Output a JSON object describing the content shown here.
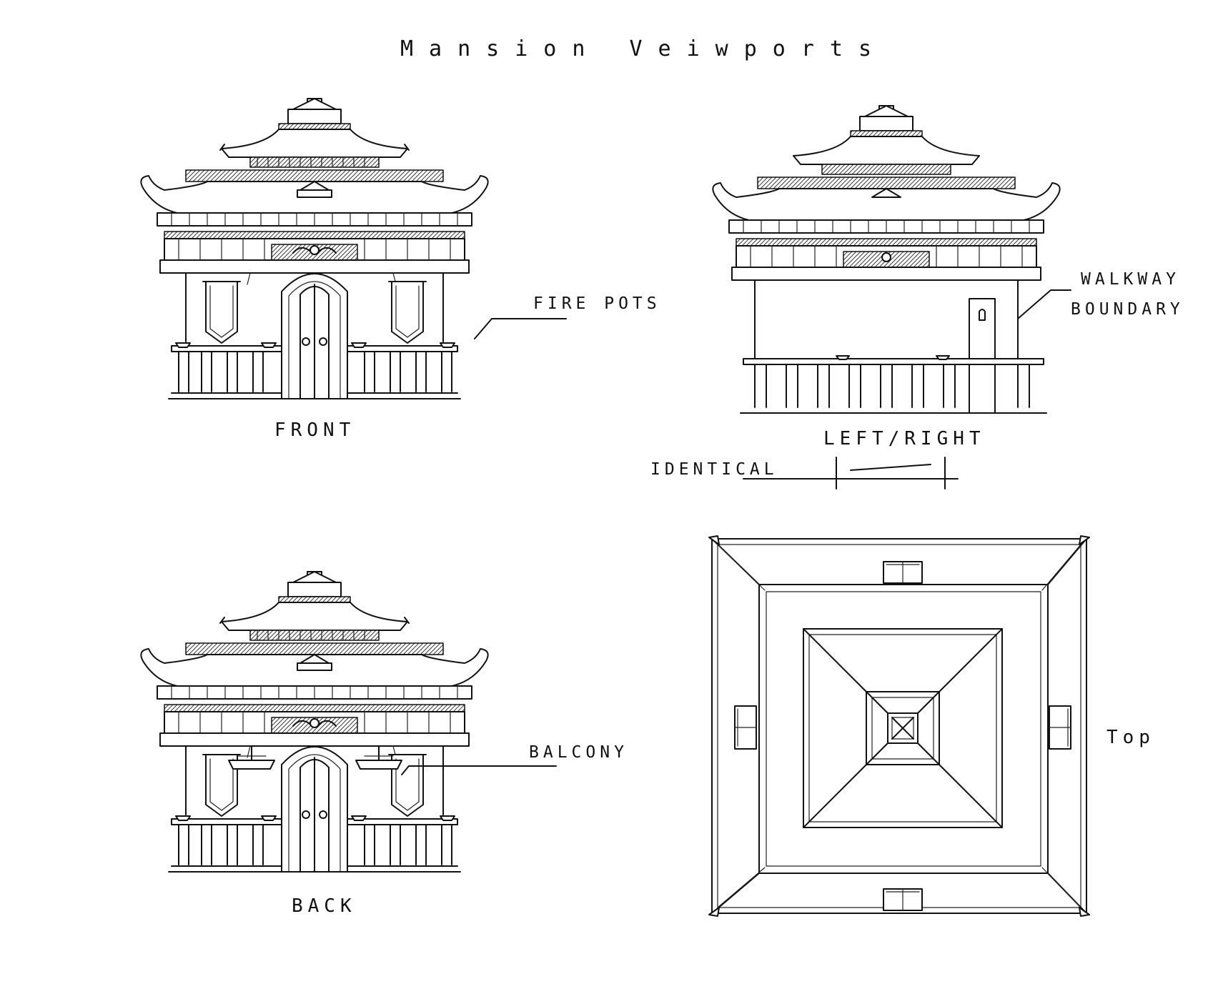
{
  "title": "Mansion Veiwports",
  "views": {
    "front": "FRONT",
    "side": "LEFT/RIGHT",
    "back": "BACK",
    "top": "Top"
  },
  "annotations": {
    "fire_pots": "FIRE POTS",
    "walkway": "WALKWAY",
    "boundary": "BOUNDARY",
    "identical": "IDENTICAL",
    "balcony": "BALCONY"
  },
  "colors": {
    "ink": "#111111",
    "paper": "#ffffff"
  }
}
